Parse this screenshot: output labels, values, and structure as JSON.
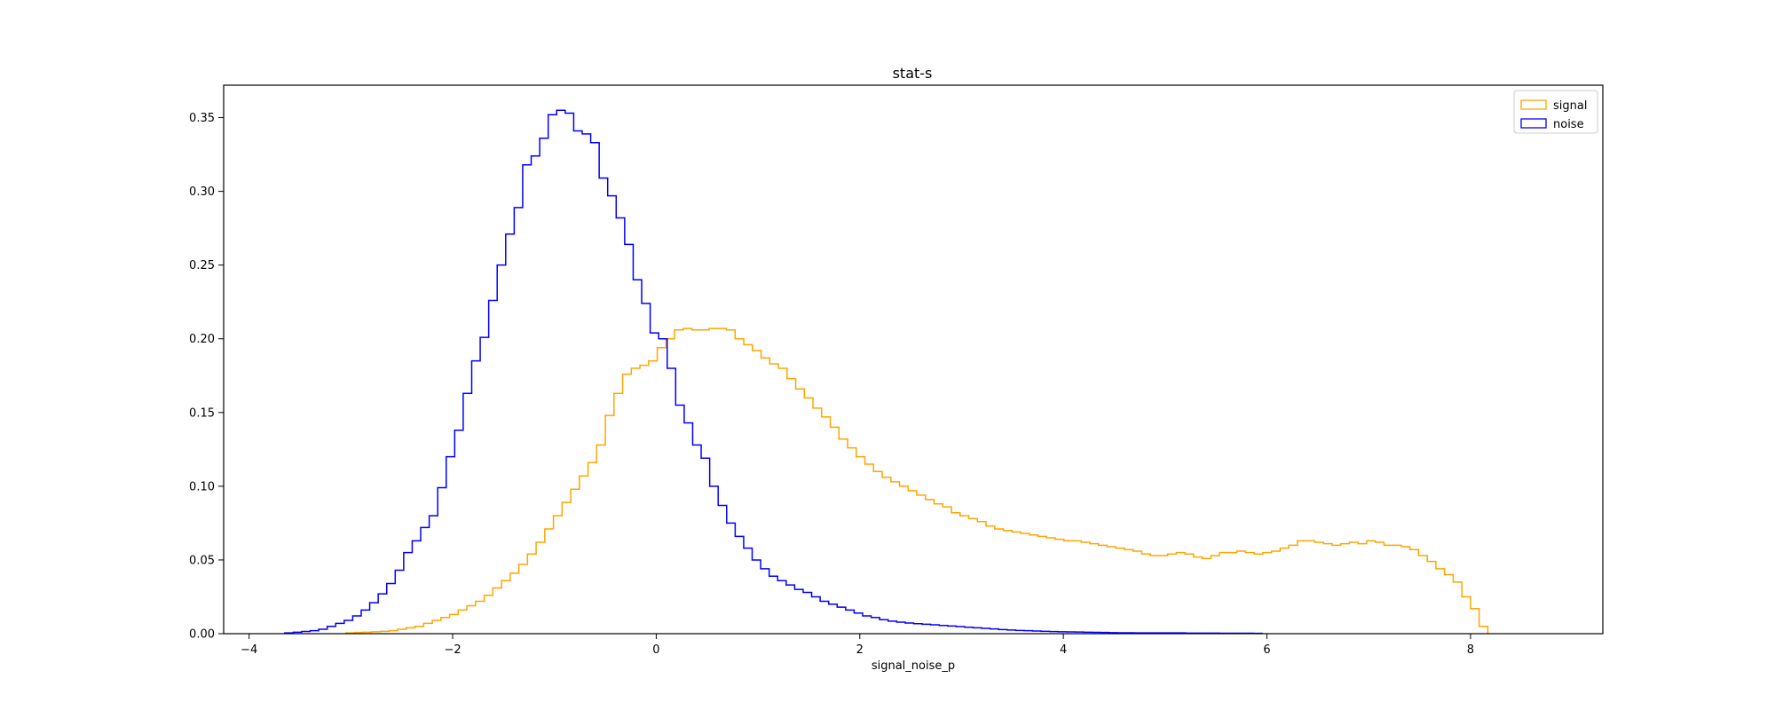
{
  "chart_data": {
    "type": "histogram",
    "title": "stat-s",
    "xlabel": "signal_noise_p",
    "ylabel": "",
    "xlim": [
      -4.25,
      9.3
    ],
    "ylim": [
      0,
      0.372
    ],
    "xticks": [
      -4,
      -2,
      0,
      2,
      4,
      6,
      8
    ],
    "xtick_labels": [
      "−4",
      "−2",
      "0",
      "2",
      "4",
      "6",
      "8"
    ],
    "yticks": [
      0.0,
      0.05,
      0.1,
      0.15,
      0.2,
      0.25,
      0.3,
      0.35
    ],
    "ytick_labels": [
      "0.00",
      "0.05",
      "0.10",
      "0.15",
      "0.20",
      "0.25",
      "0.30",
      "0.35"
    ],
    "grid": false,
    "legend_position": "top-right",
    "histtype": "step",
    "series": [
      {
        "name": "signal",
        "color": "#ffa500",
        "x_start": -3.05,
        "bin_width": 0.085,
        "values": [
          0.0005,
          0.0008,
          0.001,
          0.0013,
          0.0016,
          0.002,
          0.003,
          0.004,
          0.005,
          0.007,
          0.009,
          0.011,
          0.013,
          0.016,
          0.019,
          0.022,
          0.026,
          0.031,
          0.036,
          0.041,
          0.047,
          0.054,
          0.062,
          0.071,
          0.08,
          0.089,
          0.098,
          0.107,
          0.116,
          0.128,
          0.148,
          0.163,
          0.176,
          0.18,
          0.182,
          0.185,
          0.194,
          0.2,
          0.206,
          0.207,
          0.206,
          0.206,
          0.207,
          0.207,
          0.206,
          0.2,
          0.196,
          0.192,
          0.187,
          0.183,
          0.18,
          0.173,
          0.166,
          0.16,
          0.153,
          0.147,
          0.14,
          0.132,
          0.126,
          0.12,
          0.115,
          0.11,
          0.106,
          0.103,
          0.1,
          0.097,
          0.094,
          0.091,
          0.088,
          0.086,
          0.082,
          0.08,
          0.078,
          0.076,
          0.073,
          0.071,
          0.07,
          0.069,
          0.068,
          0.067,
          0.066,
          0.065,
          0.064,
          0.063,
          0.063,
          0.062,
          0.061,
          0.06,
          0.059,
          0.058,
          0.057,
          0.056,
          0.054,
          0.053,
          0.053,
          0.054,
          0.055,
          0.054,
          0.052,
          0.051,
          0.053,
          0.055,
          0.055,
          0.056,
          0.055,
          0.054,
          0.055,
          0.056,
          0.058,
          0.06,
          0.063,
          0.063,
          0.062,
          0.061,
          0.06,
          0.061,
          0.062,
          0.061,
          0.063,
          0.062,
          0.06,
          0.06,
          0.059,
          0.057,
          0.053,
          0.049,
          0.044,
          0.04,
          0.035,
          0.025,
          0.017,
          0.005
        ]
      },
      {
        "name": "noise",
        "color": "#0000ff",
        "x_start": -3.65,
        "bin_width": 0.0835,
        "values": [
          0.0005,
          0.001,
          0.0015,
          0.002,
          0.003,
          0.005,
          0.007,
          0.009,
          0.012,
          0.016,
          0.021,
          0.027,
          0.034,
          0.043,
          0.055,
          0.063,
          0.072,
          0.08,
          0.099,
          0.12,
          0.138,
          0.163,
          0.185,
          0.201,
          0.226,
          0.25,
          0.271,
          0.289,
          0.318,
          0.324,
          0.336,
          0.352,
          0.355,
          0.353,
          0.341,
          0.339,
          0.333,
          0.309,
          0.297,
          0.282,
          0.264,
          0.24,
          0.224,
          0.204,
          0.2,
          0.18,
          0.155,
          0.143,
          0.128,
          0.119,
          0.1,
          0.087,
          0.075,
          0.066,
          0.058,
          0.05,
          0.044,
          0.039,
          0.036,
          0.033,
          0.03,
          0.028,
          0.025,
          0.022,
          0.02,
          0.018,
          0.016,
          0.014,
          0.012,
          0.011,
          0.0095,
          0.0085,
          0.0078,
          0.0072,
          0.0068,
          0.0064,
          0.006,
          0.0056,
          0.0052,
          0.0048,
          0.0044,
          0.004,
          0.0036,
          0.0032,
          0.0028,
          0.0025,
          0.0022,
          0.002,
          0.0018,
          0.0016,
          0.0014,
          0.0013,
          0.0012,
          0.0011,
          0.001,
          0.0009,
          0.0008,
          0.0007,
          0.0006,
          0.0006,
          0.0005,
          0.0005,
          0.0005,
          0.0005,
          0.0005,
          0.0005,
          0.0004,
          0.0004,
          0.0004,
          0.0004,
          0.0003,
          0.0003,
          0.0003,
          0.0003,
          0.0002
        ]
      }
    ]
  }
}
